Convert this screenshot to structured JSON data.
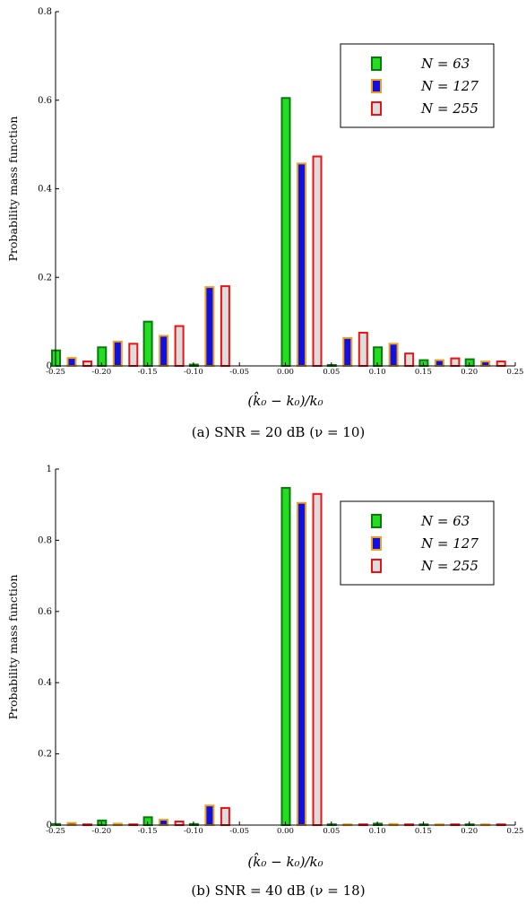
{
  "figure": {
    "panels": [
      {
        "caption": "(a) SNR = 20 dB (ν = 10)",
        "xlabel": "(k̂₀ − k₀)/k₀",
        "ylabel": "Probability mass function"
      },
      {
        "caption": "(b) SNR = 40 dB (ν = 18)",
        "xlabel": "(k̂₀ − k₀)/k₀",
        "ylabel": "Probability mass function"
      }
    ]
  },
  "series_styles": [
    {
      "name": "N = 63",
      "fill": "#22dd22",
      "stroke": "#0a7a0a"
    },
    {
      "name": "N = 127",
      "fill": "#1010e0",
      "stroke": "#f0a020"
    },
    {
      "name": "N = 255",
      "fill": "#dddddd",
      "stroke": "#ee1111"
    }
  ],
  "chart_data": [
    {
      "type": "bar",
      "title": "",
      "xlabel": "(k̂₀ − k₀)/k₀",
      "ylabel": "Probability mass function",
      "xlim": [
        -0.25,
        0.25
      ],
      "ylim": [
        0,
        0.8
      ],
      "xticks": [
        "-0.25",
        "-0.20",
        "-0.15",
        "-0.10",
        "-0.05",
        "0.00",
        "0.05",
        "0.10",
        "0.15",
        "0.20",
        "0.25"
      ],
      "yticks": [
        "0",
        "0.2",
        "0.4",
        "0.6",
        "0.8"
      ],
      "legend": "top-right",
      "categories": [
        "-0.25",
        "-0.20",
        "-0.15",
        "-0.10",
        "-0.05",
        "0.00",
        "0.05",
        "0.10",
        "0.15",
        "0.20",
        "0.25"
      ],
      "series": [
        {
          "name": "N = 63",
          "values": [
            0.035,
            0.042,
            0.1,
            0.003,
            0.0,
            0.605,
            0.002,
            0.042,
            0.013,
            0.015,
            0.0
          ]
        },
        {
          "name": "N = 127",
          "values": [
            0.018,
            0.055,
            0.068,
            0.178,
            0.0,
            0.457,
            0.063,
            0.05,
            0.013,
            0.01,
            0.0
          ]
        },
        {
          "name": "N = 255",
          "values": [
            0.01,
            0.05,
            0.09,
            0.18,
            0.0,
            0.473,
            0.075,
            0.028,
            0.017,
            0.01,
            0.0
          ]
        }
      ]
    },
    {
      "type": "bar",
      "title": "",
      "xlabel": "(k̂₀ − k₀)/k₀",
      "ylabel": "Probability mass function",
      "xlim": [
        -0.25,
        0.25
      ],
      "ylim": [
        0,
        1
      ],
      "xticks": [
        "-0.25",
        "-0.20",
        "-0.15",
        "-0.10",
        "-0.05",
        "0.00",
        "0.05",
        "0.10",
        "0.15",
        "0.20",
        "0.25"
      ],
      "yticks": [
        "0",
        "0.2",
        "0.4",
        "0.6",
        "0.8",
        "1"
      ],
      "legend": "top-right",
      "categories": [
        "-0.25",
        "-0.20",
        "-0.15",
        "-0.10",
        "-0.05",
        "0.00",
        "0.05",
        "0.10",
        "0.15",
        "0.20",
        "0.25"
      ],
      "series": [
        {
          "name": "N = 63",
          "values": [
            0.003,
            0.013,
            0.022,
            0.003,
            0.0,
            0.947,
            0.002,
            0.004,
            0.002,
            0.002,
            0.0
          ]
        },
        {
          "name": "N = 127",
          "values": [
            0.006,
            0.004,
            0.015,
            0.055,
            0.0,
            0.905,
            0.002,
            0.003,
            0.002,
            0.002,
            0.0
          ]
        },
        {
          "name": "N = 255",
          "values": [
            0.002,
            0.002,
            0.01,
            0.048,
            0.0,
            0.93,
            0.002,
            0.002,
            0.002,
            0.002,
            0.0
          ]
        }
      ]
    }
  ]
}
